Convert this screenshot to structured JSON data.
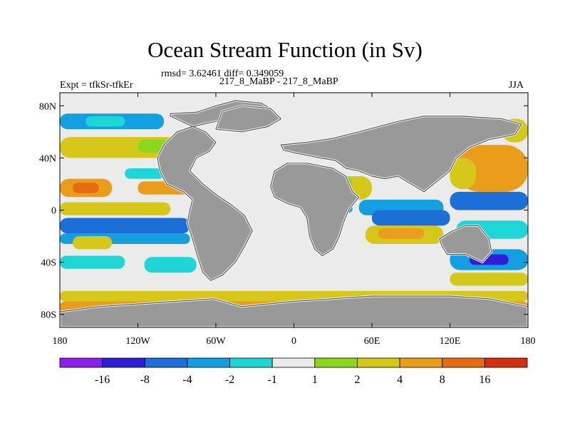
{
  "title": "Ocean Stream Function (in Sv)",
  "stats": "rmsd= 3.62461 diff= 0.349059",
  "experiment": "Expt = tfkSr-tfkEr",
  "comparison": "217_8_MaBP - 217_8_MaBP",
  "season": "JJA",
  "chart_data": {
    "type": "heatmap",
    "x_ticks": [
      {
        "lon": -180,
        "label": "180"
      },
      {
        "lon": -120,
        "label": "120W"
      },
      {
        "lon": -60,
        "label": "60W"
      },
      {
        "lon": 0,
        "label": "0"
      },
      {
        "lon": 60,
        "label": "60E"
      },
      {
        "lon": 120,
        "label": "120E"
      },
      {
        "lon": 180,
        "label": "180"
      }
    ],
    "y_ticks": [
      {
        "lat": 80,
        "label": "80N"
      },
      {
        "lat": 40,
        "label": "40N"
      },
      {
        "lat": 0,
        "label": "0"
      },
      {
        "lat": -40,
        "label": "40S"
      },
      {
        "lat": -80,
        "label": "80S"
      }
    ],
    "xlim": [
      -180,
      180
    ],
    "ylim": [
      -90,
      90
    ],
    "land_color": "#999999",
    "levels": [
      "-16",
      "-8",
      "-4",
      "-2",
      "-1",
      "1",
      "2",
      "4",
      "8",
      "16"
    ],
    "colors": [
      "#8a1fe6",
      "#2d1fd6",
      "#1c6fd6",
      "#149fe0",
      "#1ed6d6",
      "#ebebeb",
      "#8ed61e",
      "#d6c81a",
      "#ea9c1b",
      "#e66c14",
      "#d42e10"
    ],
    "fields": [
      {
        "lon0": -180,
        "lon1": -100,
        "lat0": 62,
        "lat1": 74,
        "color": "#149fe0"
      },
      {
        "lon0": -160,
        "lon1": -130,
        "lat0": 64,
        "lat1": 72,
        "color": "#1ed6d6"
      },
      {
        "lon0": -180,
        "lon1": -70,
        "lat0": 40,
        "lat1": 56,
        "color": "#d6c81a"
      },
      {
        "lon0": -120,
        "lon1": -80,
        "lat0": 44,
        "lat1": 54,
        "color": "#8ed61e"
      },
      {
        "lon0": -180,
        "lon1": -140,
        "lat0": 10,
        "lat1": 24,
        "color": "#ea9c1b"
      },
      {
        "lon0": -170,
        "lon1": -150,
        "lat0": 13,
        "lat1": 21,
        "color": "#e66c14"
      },
      {
        "lon0": -120,
        "lon1": -80,
        "lat0": 12,
        "lat1": 22,
        "color": "#ea9c1b"
      },
      {
        "lon0": -130,
        "lon1": -100,
        "lat0": 24,
        "lat1": 32,
        "color": "#1ed6d6"
      },
      {
        "lon0": -180,
        "lon1": -95,
        "lat0": -4,
        "lat1": 6,
        "color": "#d6c81a"
      },
      {
        "lon0": -180,
        "lon1": -80,
        "lat0": -18,
        "lat1": -6,
        "color": "#1c6fd6"
      },
      {
        "lon0": -180,
        "lon1": -80,
        "lat0": -26,
        "lat1": -18,
        "color": "#149fe0"
      },
      {
        "lon0": -170,
        "lon1": -140,
        "lat0": -30,
        "lat1": -20,
        "color": "#d6c81a"
      },
      {
        "lon0": -180,
        "lon1": -130,
        "lat0": -45,
        "lat1": -35,
        "color": "#1ed6d6"
      },
      {
        "lon0": -115,
        "lon1": -75,
        "lat0": -48,
        "lat1": -36,
        "color": "#1ed6d6"
      },
      {
        "lon0": -180,
        "lon1": 180,
        "lat0": -70,
        "lat1": -62,
        "color": "#d6c81a"
      },
      {
        "lon0": -180,
        "lon1": 180,
        "lat0": -78,
        "lat1": -70,
        "color": "#ea9c1b"
      },
      {
        "lon0": -180,
        "lon1": 180,
        "lat0": -85,
        "lat1": -78,
        "color": "#e66c14"
      },
      {
        "lon0": -180,
        "lon1": 180,
        "lat0": -90,
        "lat1": -85,
        "color": "#d42e10"
      },
      {
        "lon0": -20,
        "lon1": 60,
        "lat0": -90,
        "lat1": -82,
        "color": "#d42e10"
      },
      {
        "lon0": 50,
        "lon1": 115,
        "lat0": -4,
        "lat1": 8,
        "color": "#149fe0"
      },
      {
        "lon0": 60,
        "lon1": 120,
        "lat0": -12,
        "lat1": 0,
        "color": "#1c6fd6"
      },
      {
        "lon0": 55,
        "lon1": 115,
        "lat0": -26,
        "lat1": -12,
        "color": "#d6c81a"
      },
      {
        "lon0": 65,
        "lon1": 100,
        "lat0": -22,
        "lat1": -14,
        "color": "#ea9c1b"
      },
      {
        "lon0": 120,
        "lon1": 180,
        "lat0": 0,
        "lat1": 14,
        "color": "#1c6fd6"
      },
      {
        "lon0": 125,
        "lon1": 180,
        "lat0": -22,
        "lat1": -8,
        "color": "#1ed6d6"
      },
      {
        "lon0": 120,
        "lon1": 180,
        "lat0": -46,
        "lat1": -30,
        "color": "#149fe0"
      },
      {
        "lon0": 135,
        "lon1": 165,
        "lat0": -42,
        "lat1": -34,
        "color": "#2d1fd6"
      },
      {
        "lon0": 120,
        "lon1": 180,
        "lat0": -58,
        "lat1": -48,
        "color": "#d6c81a"
      },
      {
        "lon0": 125,
        "lon1": 180,
        "lat0": 14,
        "lat1": 50,
        "color": "#ea9c1b"
      },
      {
        "lon0": 120,
        "lon1": 140,
        "lat0": 16,
        "lat1": 40,
        "color": "#d6c81a"
      },
      {
        "lon0": 160,
        "lon1": 180,
        "lat0": 52,
        "lat1": 70,
        "color": "#d6c81a"
      },
      {
        "lon0": 120,
        "lon1": 160,
        "lat0": 62,
        "lat1": 70,
        "color": "#1ed6d6"
      },
      {
        "lon0": 10,
        "lon1": 60,
        "lat0": 8,
        "lat1": 26,
        "color": "#d6c81a"
      },
      {
        "lon0": 25,
        "lon1": 45,
        "lat0": 16,
        "lat1": 26,
        "color": "#8ed61e"
      },
      {
        "lon0": 25,
        "lon1": 40,
        "lat0": -4,
        "lat1": 6,
        "color": "#1ed6d6"
      },
      {
        "lon0": 30,
        "lon1": 45,
        "lat0": -2,
        "lat1": 4,
        "color": "#149fe0"
      }
    ],
    "land": [
      [
        [
          -95,
          74
        ],
        [
          -75,
          75
        ],
        [
          -60,
          80
        ],
        [
          -45,
          84
        ],
        [
          -25,
          82
        ],
        [
          -15,
          76
        ],
        [
          -22,
          72
        ],
        [
          -38,
          70
        ],
        [
          -60,
          68
        ],
        [
          -78,
          64
        ],
        [
          -90,
          60
        ],
        [
          -100,
          50
        ],
        [
          -105,
          40
        ],
        [
          -103,
          30
        ],
        [
          -98,
          20
        ],
        [
          -85,
          14
        ],
        [
          -78,
          8
        ],
        [
          -80,
          0
        ],
        [
          -82,
          -10
        ],
        [
          -78,
          -22
        ],
        [
          -74,
          -36
        ],
        [
          -70,
          -48
        ],
        [
          -64,
          -54
        ],
        [
          -55,
          -50
        ],
        [
          -45,
          -40
        ],
        [
          -38,
          -28
        ],
        [
          -32,
          -16
        ],
        [
          -38,
          -4
        ],
        [
          -48,
          4
        ],
        [
          -60,
          12
        ],
        [
          -70,
          20
        ],
        [
          -80,
          30
        ],
        [
          -75,
          40
        ],
        [
          -65,
          45
        ],
        [
          -60,
          52
        ],
        [
          -68,
          60
        ],
        [
          -82,
          66
        ],
        [
          -95,
          72
        ]
      ],
      [
        [
          -10,
          50
        ],
        [
          10,
          52
        ],
        [
          30,
          55
        ],
        [
          50,
          60
        ],
        [
          80,
          68
        ],
        [
          100,
          72
        ],
        [
          130,
          72
        ],
        [
          160,
          70
        ],
        [
          175,
          66
        ],
        [
          170,
          58
        ],
        [
          150,
          54
        ],
        [
          135,
          48
        ],
        [
          125,
          40
        ],
        [
          120,
          30
        ],
        [
          110,
          22
        ],
        [
          100,
          14
        ],
        [
          90,
          20
        ],
        [
          80,
          26
        ],
        [
          70,
          24
        ],
        [
          60,
          26
        ],
        [
          50,
          30
        ],
        [
          40,
          32
        ],
        [
          32,
          38
        ],
        [
          20,
          40
        ],
        [
          10,
          42
        ],
        [
          0,
          44
        ],
        [
          -8,
          46
        ]
      ],
      [
        [
          -15,
          30
        ],
        [
          -5,
          36
        ],
        [
          10,
          36
        ],
        [
          30,
          32
        ],
        [
          40,
          26
        ],
        [
          45,
          14
        ],
        [
          50,
          10
        ],
        [
          42,
          0
        ],
        [
          38,
          -10
        ],
        [
          35,
          -20
        ],
        [
          30,
          -30
        ],
        [
          22,
          -35
        ],
        [
          16,
          -30
        ],
        [
          12,
          -20
        ],
        [
          10,
          -6
        ],
        [
          5,
          2
        ],
        [
          -5,
          5
        ],
        [
          -15,
          10
        ],
        [
          -18,
          18
        ]
      ],
      [
        [
          112,
          -22
        ],
        [
          122,
          -16
        ],
        [
          132,
          -12
        ],
        [
          142,
          -12
        ],
        [
          150,
          -22
        ],
        [
          152,
          -32
        ],
        [
          145,
          -40
        ],
        [
          132,
          -34
        ],
        [
          118,
          -34
        ],
        [
          114,
          -28
        ]
      ],
      [
        [
          -180,
          -90
        ],
        [
          -180,
          -78
        ],
        [
          -150,
          -74
        ],
        [
          -120,
          -72
        ],
        [
          -90,
          -70
        ],
        [
          -62,
          -68
        ],
        [
          -40,
          -74
        ],
        [
          -20,
          -72
        ],
        [
          0,
          -70
        ],
        [
          30,
          -68
        ],
        [
          60,
          -66
        ],
        [
          90,
          -66
        ],
        [
          120,
          -66
        ],
        [
          150,
          -68
        ],
        [
          180,
          -74
        ],
        [
          180,
          -90
        ]
      ],
      [
        [
          -60,
          62
        ],
        [
          -40,
          60
        ],
        [
          -20,
          64
        ],
        [
          -10,
          70
        ],
        [
          -18,
          78
        ],
        [
          -40,
          80
        ],
        [
          -55,
          76
        ]
      ]
    ]
  },
  "colorbar": {
    "labels": [
      "-16",
      "-8",
      "-4",
      "-2",
      "-1",
      "1",
      "2",
      "4",
      "8",
      "16"
    ]
  }
}
